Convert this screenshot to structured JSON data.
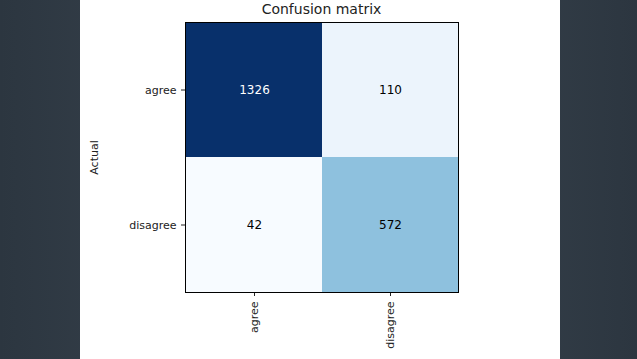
{
  "chart_data": {
    "type": "heatmap",
    "title": "Confusion matrix",
    "y_label": "Actual",
    "x_categories": [
      "agree",
      "disagree"
    ],
    "y_categories": [
      "agree",
      "disagree"
    ],
    "cells": [
      [
        1326,
        110
      ],
      [
        42,
        572
      ]
    ],
    "color": "blues",
    "data_labels": true
  }
}
